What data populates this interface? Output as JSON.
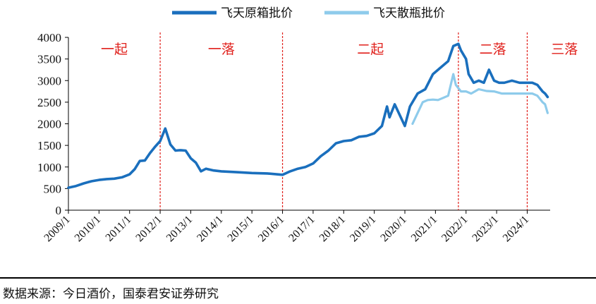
{
  "chart_data": {
    "type": "line",
    "title": "",
    "xlabel": "",
    "ylabel": "",
    "ylim": [
      0,
      4000
    ],
    "yticks": [
      "0",
      "500",
      "1000",
      "1500",
      "2000",
      "2500",
      "3000",
      "3500",
      "4000"
    ],
    "xticks": [
      "2009/1",
      "2010/1",
      "2011/1",
      "2012/1",
      "2013/1",
      "2014/1",
      "2015/1",
      "2016/1",
      "2017/1",
      "2018/1",
      "2019/1",
      "2020/1",
      "2021/1",
      "2022/1",
      "2023/1",
      "2024/1"
    ],
    "xlim": [
      "2009/1",
      "2024/10"
    ],
    "grid": false,
    "legend_position": "top",
    "phase_labels": [
      "一起",
      "一落",
      "二起",
      "二落",
      "三落"
    ],
    "phase_dividers": [
      "2012/1",
      "2016/1",
      "2021/10",
      "2024/1"
    ],
    "series": [
      {
        "name": "飞天原箱批价",
        "color": "#1a6fbd",
        "points": [
          [
            "2009/1",
            520
          ],
          [
            "2009/4",
            560
          ],
          [
            "2009/7",
            620
          ],
          [
            "2009/10",
            670
          ],
          [
            "2010/1",
            700
          ],
          [
            "2010/4",
            720
          ],
          [
            "2010/7",
            730
          ],
          [
            "2010/10",
            760
          ],
          [
            "2011/1",
            830
          ],
          [
            "2011/3",
            950
          ],
          [
            "2011/5",
            1140
          ],
          [
            "2011/7",
            1150
          ],
          [
            "2011/9",
            1320
          ],
          [
            "2011/11",
            1470
          ],
          [
            "2012/1",
            1600
          ],
          [
            "2012/3",
            1890
          ],
          [
            "2012/5",
            1520
          ],
          [
            "2012/7",
            1380
          ],
          [
            "2012/9",
            1390
          ],
          [
            "2012/11",
            1380
          ],
          [
            "2013/1",
            1200
          ],
          [
            "2013/3",
            1100
          ],
          [
            "2013/5",
            900
          ],
          [
            "2013/7",
            960
          ],
          [
            "2013/10",
            920
          ],
          [
            "2014/1",
            900
          ],
          [
            "2014/7",
            880
          ],
          [
            "2015/1",
            860
          ],
          [
            "2015/7",
            850
          ],
          [
            "2016/1",
            820
          ],
          [
            "2016/4",
            900
          ],
          [
            "2016/7",
            960
          ],
          [
            "2016/10",
            1000
          ],
          [
            "2017/1",
            1080
          ],
          [
            "2017/4",
            1250
          ],
          [
            "2017/7",
            1380
          ],
          [
            "2017/10",
            1550
          ],
          [
            "2018/1",
            1600
          ],
          [
            "2018/4",
            1620
          ],
          [
            "2018/7",
            1700
          ],
          [
            "2018/10",
            1720
          ],
          [
            "2019/1",
            1780
          ],
          [
            "2019/4",
            1950
          ],
          [
            "2019/6",
            2400
          ],
          [
            "2019/7",
            2150
          ],
          [
            "2019/9",
            2450
          ],
          [
            "2019/11",
            2200
          ],
          [
            "2020/1",
            1950
          ],
          [
            "2020/3",
            2400
          ],
          [
            "2020/6",
            2700
          ],
          [
            "2020/9",
            2800
          ],
          [
            "2020/12",
            3150
          ],
          [
            "2021/3",
            3300
          ],
          [
            "2021/6",
            3450
          ],
          [
            "2021/8",
            3800
          ],
          [
            "2021/10",
            3850
          ],
          [
            "2021/11",
            3700
          ],
          [
            "2022/1",
            3500
          ],
          [
            "2022/2",
            3150
          ],
          [
            "2022/4",
            2950
          ],
          [
            "2022/6",
            3000
          ],
          [
            "2022/8",
            2950
          ],
          [
            "2022/10",
            3250
          ],
          [
            "2022/12",
            3000
          ],
          [
            "2023/2",
            2950
          ],
          [
            "2023/4",
            2950
          ],
          [
            "2023/7",
            3000
          ],
          [
            "2023/10",
            2950
          ],
          [
            "2024/1",
            2950
          ],
          [
            "2024/3",
            2950
          ],
          [
            "2024/5",
            2900
          ],
          [
            "2024/7",
            2750
          ],
          [
            "2024/8",
            2700
          ],
          [
            "2024/9",
            2620
          ]
        ]
      },
      {
        "name": "飞天散瓶批价",
        "color": "#8ecbeb",
        "points": [
          [
            "2020/4",
            2000
          ],
          [
            "2020/6",
            2250
          ],
          [
            "2020/8",
            2500
          ],
          [
            "2020/10",
            2550
          ],
          [
            "2020/12",
            2560
          ],
          [
            "2021/2",
            2550
          ],
          [
            "2021/4",
            2600
          ],
          [
            "2021/6",
            2650
          ],
          [
            "2021/8",
            3150
          ],
          [
            "2021/9",
            2900
          ],
          [
            "2021/11",
            2750
          ],
          [
            "2022/1",
            2750
          ],
          [
            "2022/3",
            2700
          ],
          [
            "2022/6",
            2800
          ],
          [
            "2022/9",
            2760
          ],
          [
            "2022/12",
            2750
          ],
          [
            "2023/3",
            2700
          ],
          [
            "2023/6",
            2700
          ],
          [
            "2023/9",
            2700
          ],
          [
            "2023/12",
            2700
          ],
          [
            "2024/3",
            2700
          ],
          [
            "2024/5",
            2650
          ],
          [
            "2024/7",
            2500
          ],
          [
            "2024/8",
            2450
          ],
          [
            "2024/9",
            2250
          ]
        ]
      }
    ]
  },
  "source_note": "数据来源：今日酒价，国泰君安证券研究"
}
